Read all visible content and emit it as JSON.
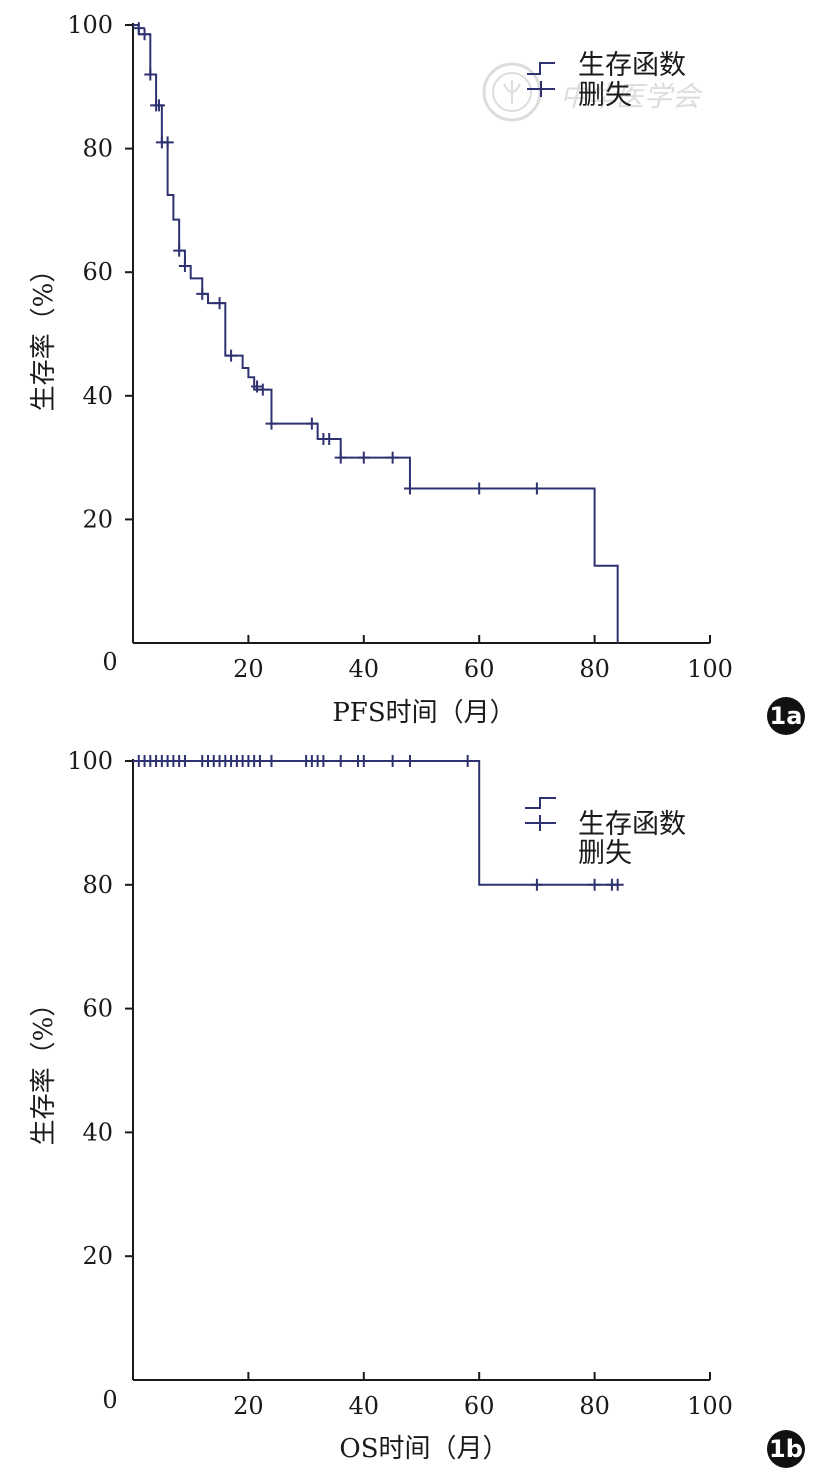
{
  "chart_data": [
    {
      "type": "line",
      "panel_label": "1a",
      "xlabel": "PFS时间（月）",
      "ylabel": "生存率（%）",
      "xlim": [
        0,
        100
      ],
      "ylim": [
        0,
        100
      ],
      "x_ticks": [
        "20",
        "40",
        "60",
        "80",
        "100"
      ],
      "y_ticks": [
        "20",
        "40",
        "60",
        "80",
        "100"
      ],
      "origin_label": "0",
      "legend": {
        "placement": "top-right",
        "entries": [
          "生存函数",
          "删失"
        ]
      },
      "watermark": "中华医学会",
      "series": [
        {
          "name": "生存函数",
          "steps": [
            [
              0,
              100
            ],
            [
              1,
              98.5
            ],
            [
              3,
              92
            ],
            [
              4,
              87
            ],
            [
              5,
              81
            ],
            [
              6,
              72.5
            ],
            [
              7,
              68.5
            ],
            [
              8,
              63.5
            ],
            [
              9,
              61
            ],
            [
              10,
              59
            ],
            [
              12,
              56.5
            ],
            [
              13,
              55
            ],
            [
              16,
              46.5
            ],
            [
              19,
              44.5
            ],
            [
              20,
              43
            ],
            [
              21,
              41
            ],
            [
              24,
              35.5
            ],
            [
              32,
              33
            ],
            [
              36,
              30
            ],
            [
              48,
              25
            ],
            [
              80,
              12.5
            ],
            [
              84,
              0
            ]
          ],
          "censored": [
            [
              1,
              99.5
            ],
            [
              2,
              98.5
            ],
            [
              3,
              92
            ],
            [
              4,
              87
            ],
            [
              4.5,
              87
            ],
            [
              5,
              81
            ],
            [
              6,
              81
            ],
            [
              8,
              63.5
            ],
            [
              9,
              61
            ],
            [
              12,
              56.5
            ],
            [
              15,
              55
            ],
            [
              17,
              46.5
            ],
            [
              21.5,
              41.5
            ],
            [
              22.5,
              41
            ],
            [
              24,
              35.5
            ],
            [
              31,
              35.5
            ],
            [
              33,
              33
            ],
            [
              34,
              33
            ],
            [
              36,
              30
            ],
            [
              40,
              30
            ],
            [
              45,
              30
            ],
            [
              48,
              25
            ],
            [
              60,
              25
            ],
            [
              70,
              25
            ]
          ]
        }
      ]
    },
    {
      "type": "line",
      "panel_label": "1b",
      "xlabel": "OS时间（月）",
      "ylabel": "生存率（%）",
      "xlim": [
        0,
        100
      ],
      "ylim": [
        0,
        100
      ],
      "x_ticks": [
        "20",
        "40",
        "60",
        "80",
        "100"
      ],
      "y_ticks": [
        "20",
        "40",
        "60",
        "80",
        "100"
      ],
      "origin_label": "0",
      "legend": {
        "placement": "top-right",
        "entries": [
          "生存函数",
          "删失"
        ]
      },
      "series": [
        {
          "name": "生存函数",
          "steps": [
            [
              0,
              100
            ],
            [
              60,
              80
            ],
            [
              84,
              80
            ]
          ],
          "censored": [
            [
              1,
              100
            ],
            [
              2,
              100
            ],
            [
              3,
              100
            ],
            [
              4,
              100
            ],
            [
              5,
              100
            ],
            [
              6,
              100
            ],
            [
              7,
              100
            ],
            [
              8,
              100
            ],
            [
              9,
              100
            ],
            [
              12,
              100
            ],
            [
              13,
              100
            ],
            [
              14,
              100
            ],
            [
              15,
              100
            ],
            [
              16,
              100
            ],
            [
              17,
              100
            ],
            [
              18,
              100
            ],
            [
              19,
              100
            ],
            [
              20,
              100
            ],
            [
              21,
              100
            ],
            [
              22,
              100
            ],
            [
              24,
              100
            ],
            [
              30,
              100
            ],
            [
              31,
              100
            ],
            [
              32,
              100
            ],
            [
              33,
              100
            ],
            [
              36,
              100
            ],
            [
              39,
              100
            ],
            [
              40,
              100
            ],
            [
              45,
              100
            ],
            [
              48,
              100
            ],
            [
              58,
              100
            ],
            [
              70,
              80
            ],
            [
              80,
              80
            ],
            [
              83,
              80
            ],
            [
              84,
              80
            ]
          ]
        }
      ]
    }
  ]
}
